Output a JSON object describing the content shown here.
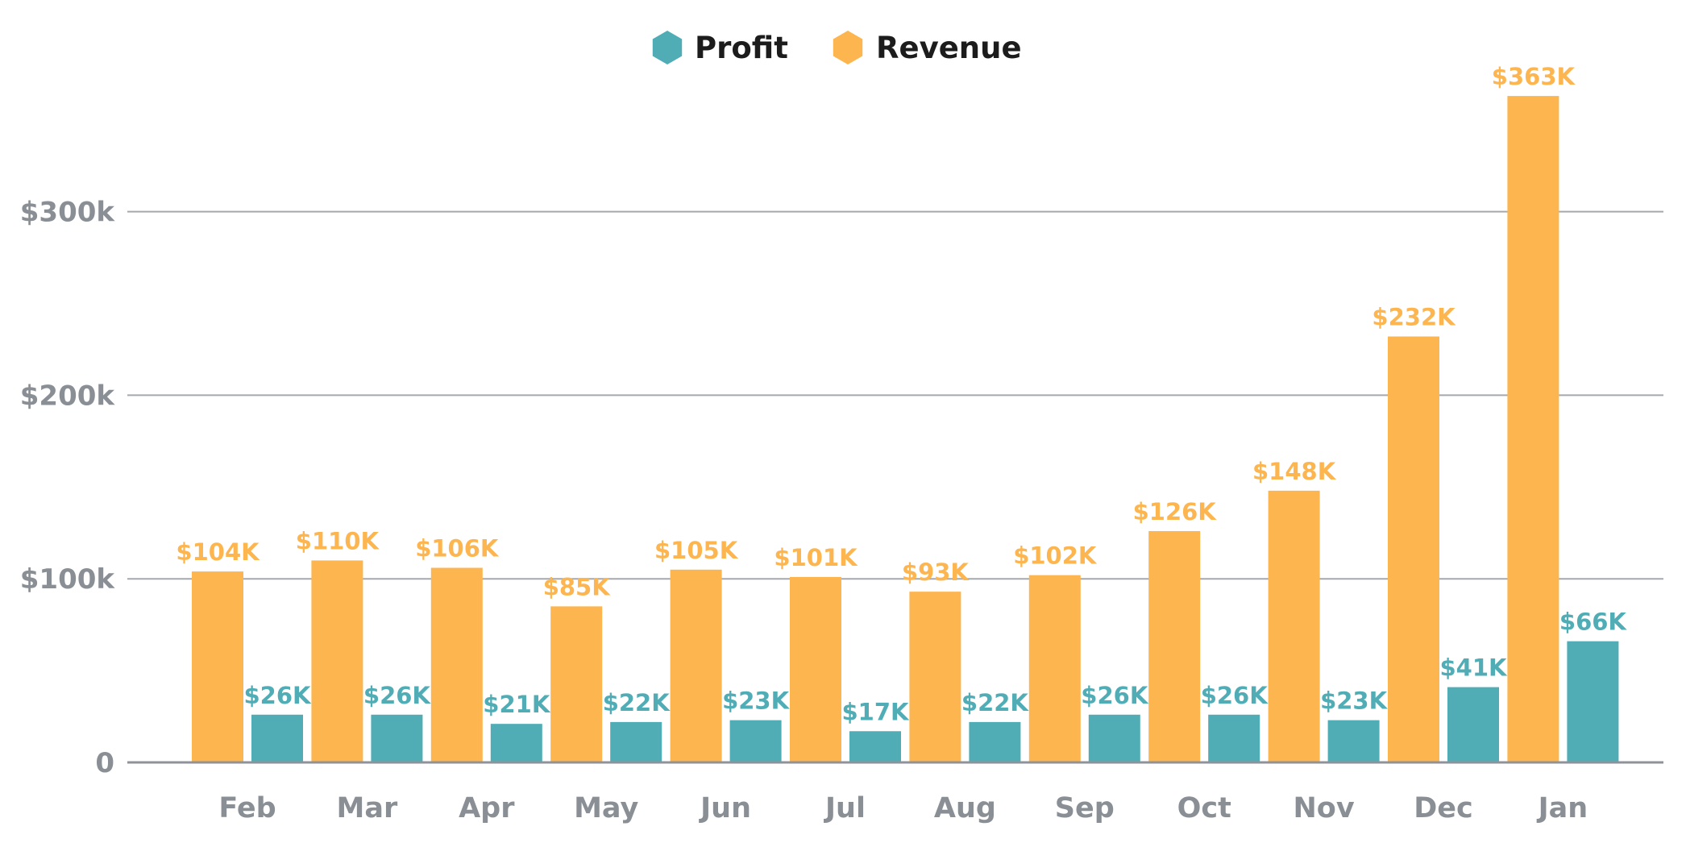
{
  "chart_data": {
    "type": "bar",
    "categories": [
      "Feb",
      "Mar",
      "Apr",
      "May",
      "Jun",
      "Jul",
      "Aug",
      "Sep",
      "Oct",
      "Nov",
      "Dec",
      "Jan"
    ],
    "series": [
      {
        "name": "Revenue",
        "color": "#fdb64f",
        "values": [
          104,
          110,
          106,
          85,
          105,
          101,
          93,
          102,
          126,
          148,
          232,
          363
        ],
        "labels": [
          "$104K",
          "$110K",
          "$106K",
          "$85K",
          "$105K",
          "$101K",
          "$93K",
          "$102K",
          "$126K",
          "$148K",
          "$232K",
          "$363K"
        ]
      },
      {
        "name": "Profit",
        "color": "#50adb6",
        "values": [
          26,
          26,
          21,
          22,
          23,
          17,
          22,
          26,
          26,
          23,
          41,
          66
        ],
        "labels": [
          "$26K",
          "$26K",
          "$21K",
          "$22K",
          "$23K",
          "$17K",
          "$22K",
          "$26K",
          "$26K",
          "$23K",
          "$41K",
          "$66K"
        ]
      }
    ],
    "legend": [
      {
        "name": "Profit",
        "color": "#50adb6"
      },
      {
        "name": "Revenue",
        "color": "#fdb64f"
      }
    ],
    "legend_position": "top-center",
    "yticks": [
      {
        "value": 0,
        "label": "0"
      },
      {
        "value": 100,
        "label": "$100k"
      },
      {
        "value": 200,
        "label": "$200k"
      },
      {
        "value": 300,
        "label": "$300k"
      }
    ],
    "ylim": [
      0,
      370
    ],
    "yunit": "thousands of dollars",
    "grid": true,
    "title": "",
    "xlabel": "",
    "ylabel": ""
  }
}
